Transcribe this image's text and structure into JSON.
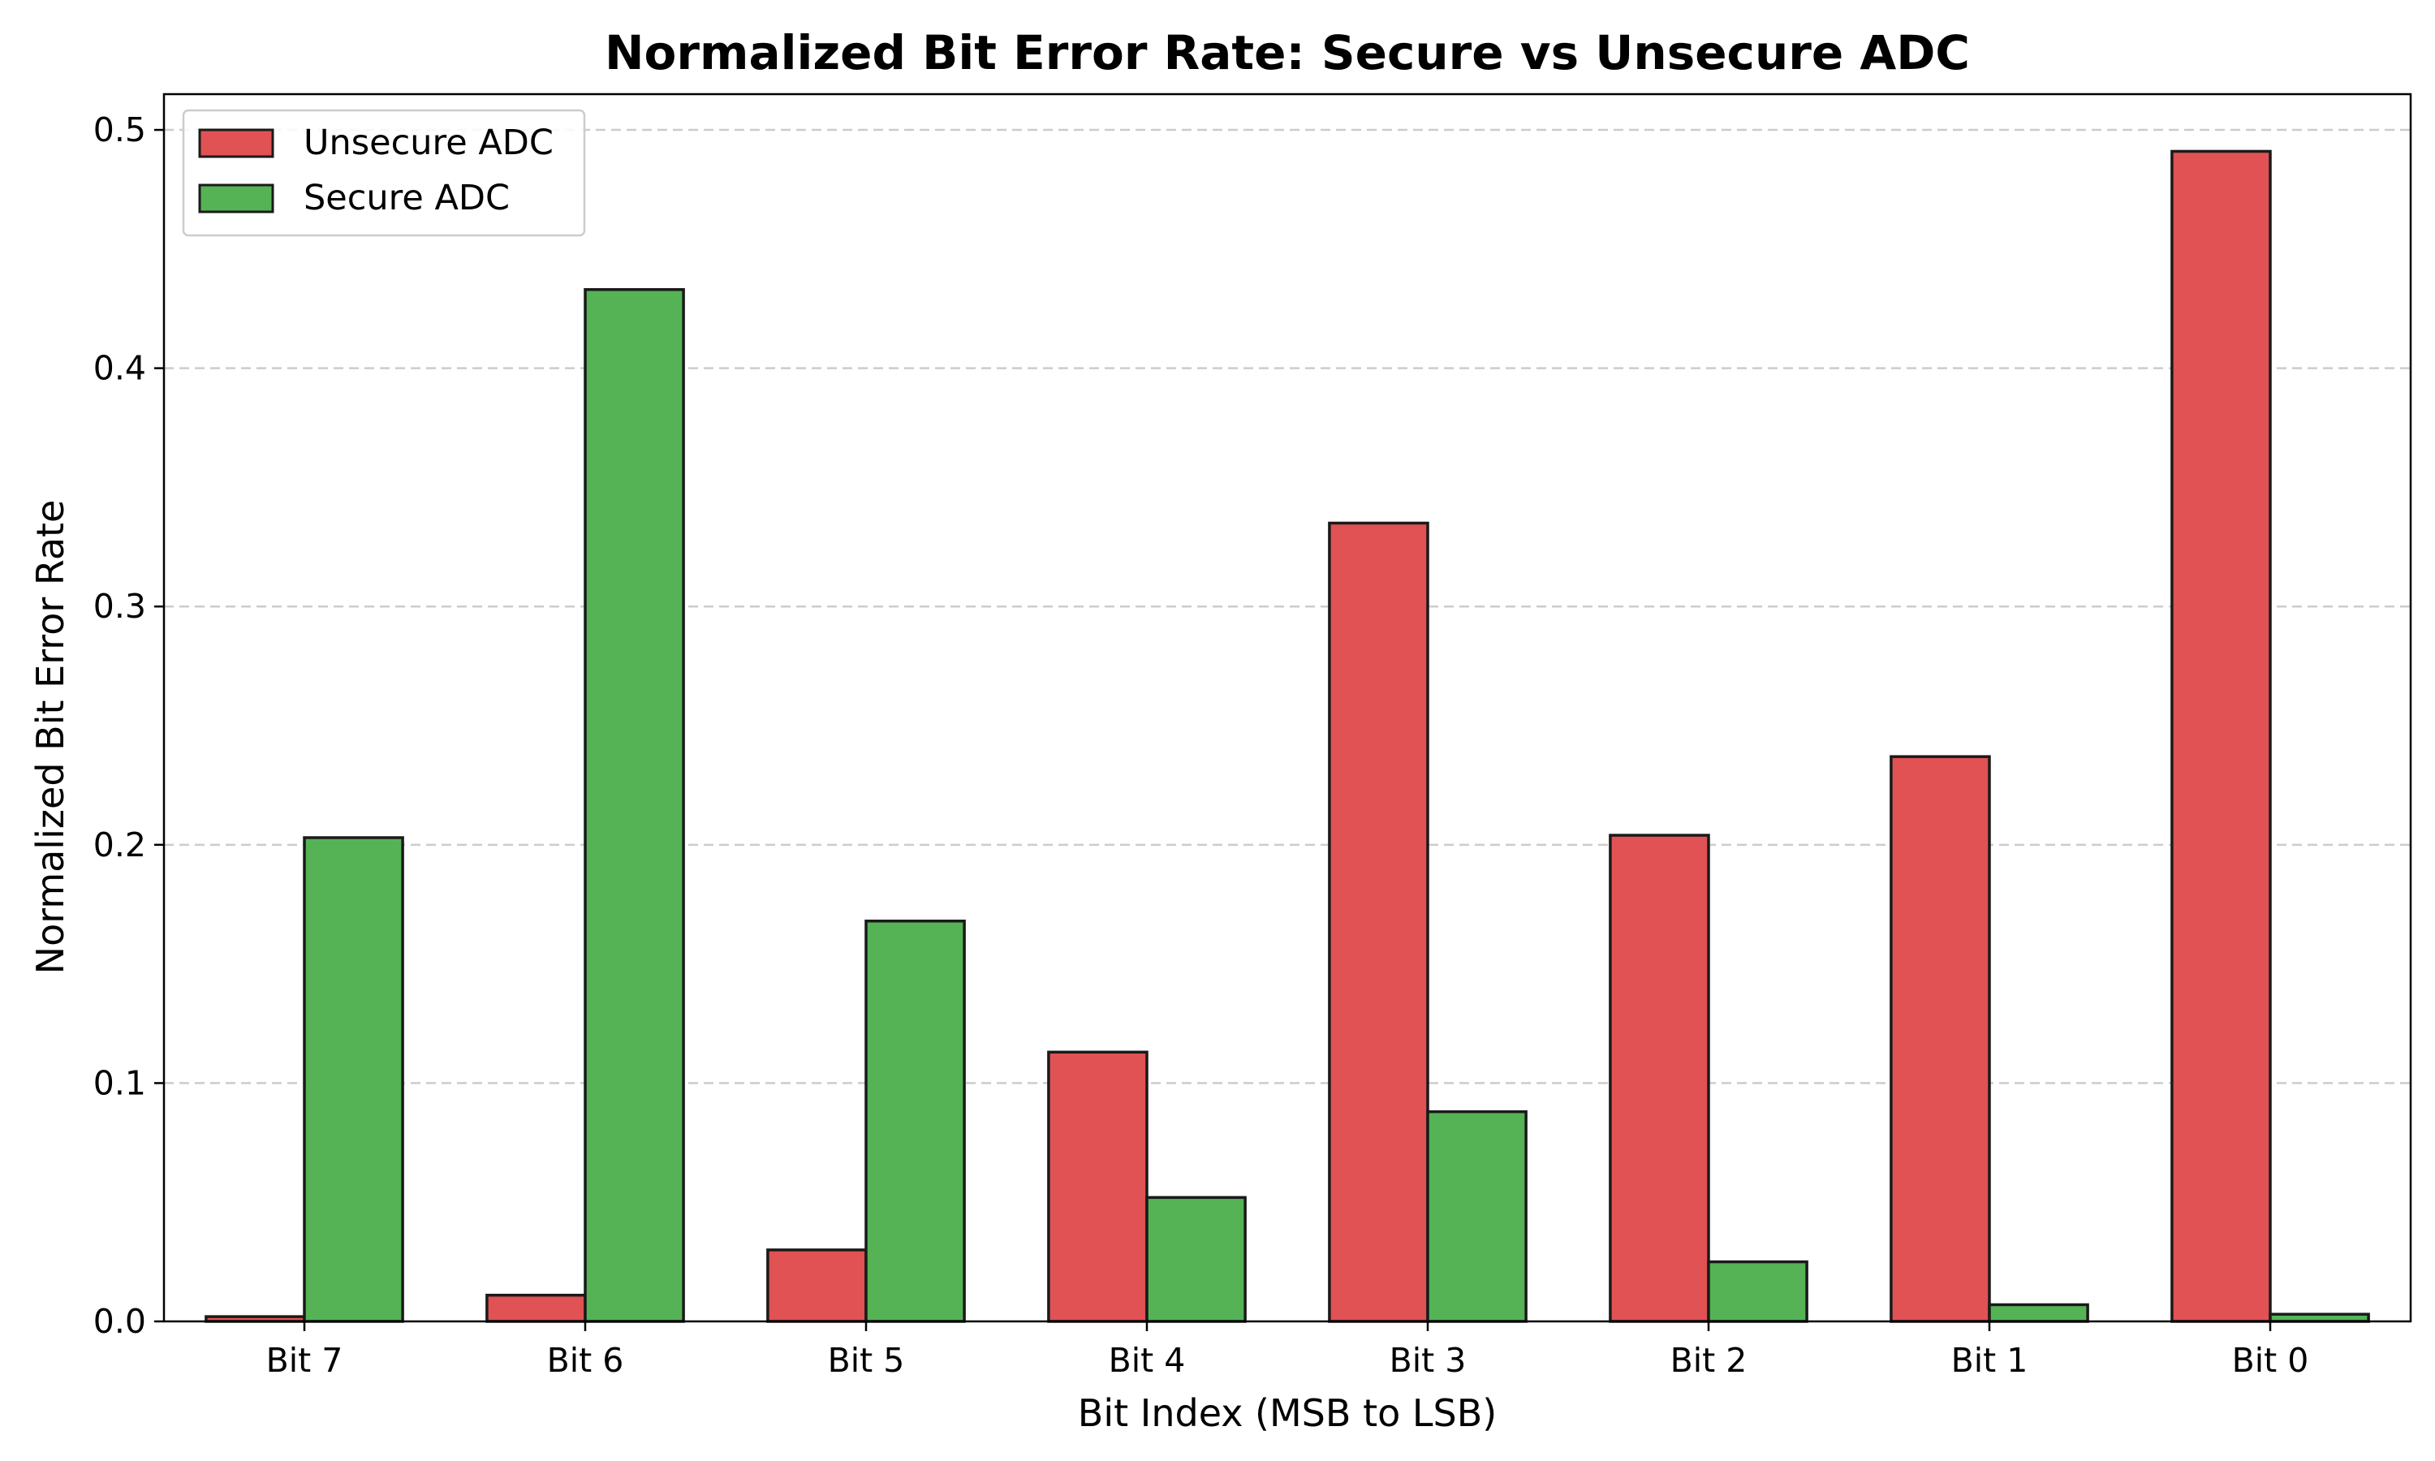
{
  "chart_data": {
    "type": "bar",
    "title": "Normalized Bit Error Rate: Secure vs Unsecure ADC",
    "xlabel": "Bit Index (MSB to LSB)",
    "ylabel": "Normalized Bit Error Rate",
    "categories": [
      "Bit 7",
      "Bit 6",
      "Bit 5",
      "Bit 4",
      "Bit 3",
      "Bit 2",
      "Bit 1",
      "Bit 0"
    ],
    "series": [
      {
        "name": "Unsecure ADC",
        "color": "#e05254",
        "values": [
          0.002,
          0.011,
          0.03,
          0.113,
          0.335,
          0.204,
          0.237,
          0.491
        ]
      },
      {
        "name": "Secure ADC",
        "color": "#55b355",
        "values": [
          0.203,
          0.433,
          0.168,
          0.052,
          0.088,
          0.025,
          0.007,
          0.003
        ]
      }
    ],
    "ylim": [
      0,
      0.515
    ],
    "yticks": [
      0.0,
      0.1,
      0.2,
      0.3,
      0.4,
      0.5
    ],
    "ytick_labels": [
      "0.0",
      "0.1",
      "0.2",
      "0.3",
      "0.4",
      "0.5"
    ],
    "grid": "y-dashed",
    "legend_position": "top-left"
  }
}
